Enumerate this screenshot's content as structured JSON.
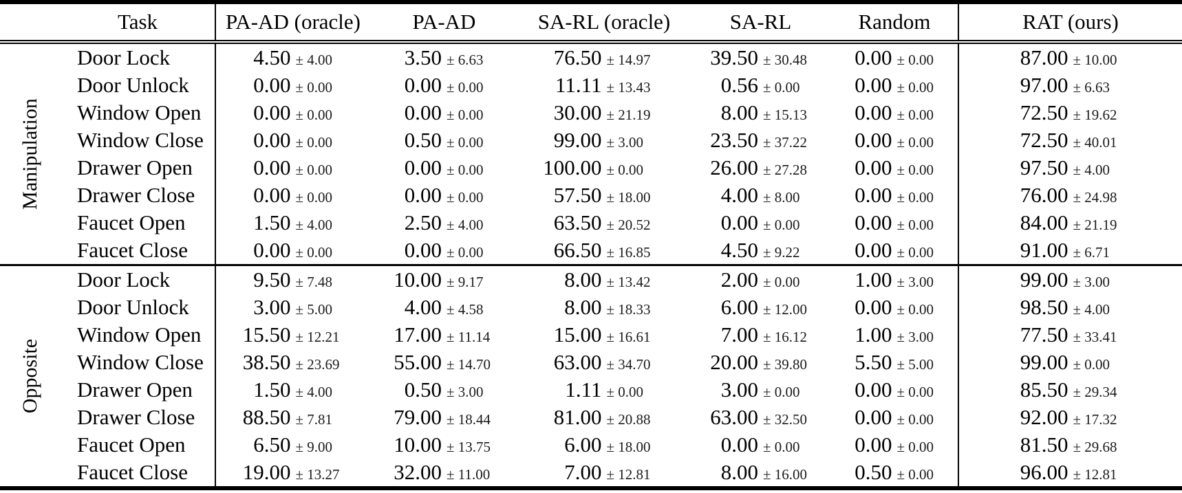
{
  "table": {
    "plus_minus": "±",
    "header": {
      "task": "Task",
      "methods": [
        "PA-AD (oracle)",
        "PA-AD",
        "SA-RL (oracle)",
        "SA-RL",
        "Random",
        "RAT (ours)"
      ]
    },
    "groups": [
      {
        "label": "Manipulation",
        "rows": [
          {
            "task": "Door Lock",
            "cells": [
              [
                "4.50",
                "4.00"
              ],
              [
                "3.50",
                "6.63"
              ],
              [
                "76.50",
                "14.97"
              ],
              [
                "39.50",
                "30.48"
              ],
              [
                "0.00",
                "0.00"
              ],
              [
                "87.00",
                "10.00"
              ]
            ]
          },
          {
            "task": "Door Unlock",
            "cells": [
              [
                "0.00",
                "0.00"
              ],
              [
                "0.00",
                "0.00"
              ],
              [
                "11.11",
                "13.43"
              ],
              [
                "0.56",
                "0.00"
              ],
              [
                "0.00",
                "0.00"
              ],
              [
                "97.00",
                "6.63"
              ]
            ]
          },
          {
            "task": "Window Open",
            "cells": [
              [
                "0.00",
                "0.00"
              ],
              [
                "0.00",
                "0.00"
              ],
              [
                "30.00",
                "21.19"
              ],
              [
                "8.00",
                "15.13"
              ],
              [
                "0.00",
                "0.00"
              ],
              [
                "72.50",
                "19.62"
              ]
            ]
          },
          {
            "task": "Window Close",
            "cells": [
              [
                "0.00",
                "0.00"
              ],
              [
                "0.50",
                "0.00"
              ],
              [
                "99.00",
                "3.00"
              ],
              [
                "23.50",
                "37.22"
              ],
              [
                "0.00",
                "0.00"
              ],
              [
                "72.50",
                "40.01"
              ]
            ]
          },
          {
            "task": "Drawer Open",
            "cells": [
              [
                "0.00",
                "0.00"
              ],
              [
                "0.00",
                "0.00"
              ],
              [
                "100.00",
                "0.00"
              ],
              [
                "26.00",
                "27.28"
              ],
              [
                "0.00",
                "0.00"
              ],
              [
                "97.50",
                "4.00"
              ]
            ]
          },
          {
            "task": "Drawer Close",
            "cells": [
              [
                "0.00",
                "0.00"
              ],
              [
                "0.00",
                "0.00"
              ],
              [
                "57.50",
                "18.00"
              ],
              [
                "4.00",
                "8.00"
              ],
              [
                "0.00",
                "0.00"
              ],
              [
                "76.00",
                "24.98"
              ]
            ]
          },
          {
            "task": "Faucet Open",
            "cells": [
              [
                "1.50",
                "4.00"
              ],
              [
                "2.50",
                "4.00"
              ],
              [
                "63.50",
                "20.52"
              ],
              [
                "0.00",
                "0.00"
              ],
              [
                "0.00",
                "0.00"
              ],
              [
                "84.00",
                "21.19"
              ]
            ]
          },
          {
            "task": "Faucet Close",
            "cells": [
              [
                "0.00",
                "0.00"
              ],
              [
                "0.00",
                "0.00"
              ],
              [
                "66.50",
                "16.85"
              ],
              [
                "4.50",
                "9.22"
              ],
              [
                "0.00",
                "0.00"
              ],
              [
                "91.00",
                "6.71"
              ]
            ]
          }
        ]
      },
      {
        "label": "Opposite",
        "rows": [
          {
            "task": "Door Lock",
            "cells": [
              [
                "9.50",
                "7.48"
              ],
              [
                "10.00",
                "9.17"
              ],
              [
                "8.00",
                "13.42"
              ],
              [
                "2.00",
                "0.00"
              ],
              [
                "1.00",
                "3.00"
              ],
              [
                "99.00",
                "3.00"
              ]
            ]
          },
          {
            "task": "Door Unlock",
            "cells": [
              [
                "3.00",
                "5.00"
              ],
              [
                "4.00",
                "4.58"
              ],
              [
                "8.00",
                "18.33"
              ],
              [
                "6.00",
                "12.00"
              ],
              [
                "0.00",
                "0.00"
              ],
              [
                "98.50",
                "4.00"
              ]
            ]
          },
          {
            "task": "Window Open",
            "cells": [
              [
                "15.50",
                "12.21"
              ],
              [
                "17.00",
                "11.14"
              ],
              [
                "15.00",
                "16.61"
              ],
              [
                "7.00",
                "16.12"
              ],
              [
                "1.00",
                "3.00"
              ],
              [
                "77.50",
                "33.41"
              ]
            ]
          },
          {
            "task": "Window Close",
            "cells": [
              [
                "38.50",
                "23.69"
              ],
              [
                "55.00",
                "14.70"
              ],
              [
                "63.00",
                "34.70"
              ],
              [
                "20.00",
                "39.80"
              ],
              [
                "5.50",
                "5.00"
              ],
              [
                "99.00",
                "0.00"
              ]
            ]
          },
          {
            "task": "Drawer Open",
            "cells": [
              [
                "1.50",
                "4.00"
              ],
              [
                "0.50",
                "3.00"
              ],
              [
                "1.11",
                "0.00"
              ],
              [
                "3.00",
                "0.00"
              ],
              [
                "0.00",
                "0.00"
              ],
              [
                "85.50",
                "29.34"
              ]
            ]
          },
          {
            "task": "Drawer Close",
            "cells": [
              [
                "88.50",
                "7.81"
              ],
              [
                "79.00",
                "18.44"
              ],
              [
                "81.00",
                "20.88"
              ],
              [
                "63.00",
                "32.50"
              ],
              [
                "0.00",
                "0.00"
              ],
              [
                "92.00",
                "17.32"
              ]
            ]
          },
          {
            "task": "Faucet Open",
            "cells": [
              [
                "6.50",
                "9.00"
              ],
              [
                "10.00",
                "13.75"
              ],
              [
                "6.00",
                "18.00"
              ],
              [
                "0.00",
                "0.00"
              ],
              [
                "0.00",
                "0.00"
              ],
              [
                "81.50",
                "29.68"
              ]
            ]
          },
          {
            "task": "Faucet Close",
            "cells": [
              [
                "19.00",
                "13.27"
              ],
              [
                "32.00",
                "11.00"
              ],
              [
                "7.00",
                "12.81"
              ],
              [
                "8.00",
                "16.00"
              ],
              [
                "0.50",
                "0.00"
              ],
              [
                "96.00",
                "12.81"
              ]
            ]
          }
        ]
      }
    ],
    "colors": {
      "text": "#000000",
      "rule": "#000000",
      "background": "#ffffff"
    }
  }
}
